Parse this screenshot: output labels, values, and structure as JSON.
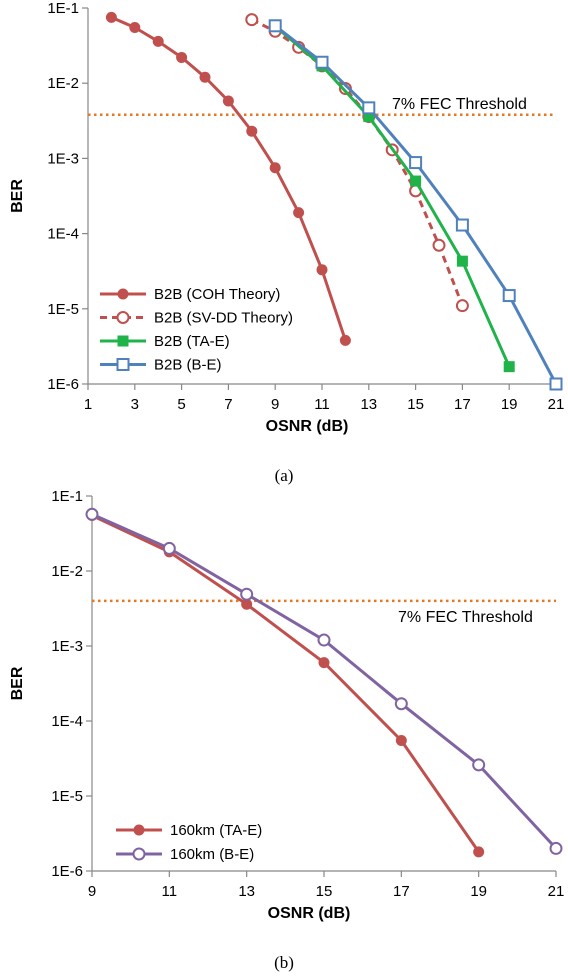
{
  "chart_data": [
    {
      "type": "line",
      "caption": "(a)",
      "xlabel": "OSNR (dB)",
      "ylabel": "BER",
      "xlim": [
        1,
        21
      ],
      "ylim": [
        1e-06,
        0.1
      ],
      "yscale": "log",
      "xticks": [
        "1",
        "3",
        "5",
        "7",
        "9",
        "11",
        "13",
        "15",
        "17",
        "19",
        "21"
      ],
      "yticks": [
        "1E-6",
        "1E-5",
        "1E-4",
        "1E-3",
        "1E-2",
        "1E-1"
      ],
      "grid": false,
      "legend_position": "bottom-left",
      "threshold": {
        "label": "7% FEC Threshold",
        "value": 0.0038,
        "color": "#e87722"
      },
      "series": [
        {
          "name": "B2B (COH Theory)",
          "color": "#c0504d",
          "marker": "filled-circle",
          "dash": false,
          "x": [
            2,
            3,
            4,
            5,
            6,
            7,
            8,
            9,
            10,
            11,
            12
          ],
          "y": [
            0.075,
            0.055,
            0.036,
            0.022,
            0.012,
            0.0058,
            0.0023,
            0.00075,
            0.00019,
            3.3e-05,
            3.8e-06
          ]
        },
        {
          "name": "B2B (SV-DD Theory)",
          "color": "#c0504d",
          "marker": "open-circle",
          "dash": true,
          "x": [
            8,
            9,
            10,
            11,
            12,
            13,
            14,
            15,
            16,
            17
          ],
          "y": [
            0.07,
            0.049,
            0.03,
            0.017,
            0.0085,
            0.0036,
            0.0013,
            0.00037,
            7e-05,
            1.1e-05
          ]
        },
        {
          "name": "B2B (TA-E)",
          "color": "#1fb34a",
          "marker": "filled-square",
          "dash": false,
          "x": [
            9,
            11,
            13,
            15,
            17,
            19
          ],
          "y": [
            0.057,
            0.017,
            0.0036,
            0.0005,
            4.3e-05,
            1.7e-06
          ]
        },
        {
          "name": "B2B (B-E)",
          "color": "#4f81bd",
          "marker": "open-square",
          "dash": false,
          "x": [
            9,
            11,
            13,
            15,
            17,
            19,
            21
          ],
          "y": [
            0.058,
            0.019,
            0.0047,
            0.00088,
            0.00013,
            1.5e-05,
            1e-06
          ]
        }
      ]
    },
    {
      "type": "line",
      "caption": "(b)",
      "xlabel": "OSNR (dB)",
      "ylabel": "BER",
      "xlim": [
        9,
        21
      ],
      "ylim": [
        1e-06,
        0.1
      ],
      "yscale": "log",
      "xticks": [
        "9",
        "11",
        "13",
        "15",
        "17",
        "19",
        "21"
      ],
      "yticks": [
        "1E-6",
        "1E-5",
        "1E-4",
        "1E-3",
        "1E-2",
        "1E-1"
      ],
      "grid": false,
      "legend_position": "bottom-left",
      "threshold": {
        "label": "7% FEC Threshold",
        "value": 0.004,
        "color": "#e87722"
      },
      "series": [
        {
          "name": "160km (TA-E)",
          "color": "#c0504d",
          "marker": "filled-circle",
          "dash": false,
          "x": [
            9,
            11,
            13,
            15,
            17,
            19
          ],
          "y": [
            0.055,
            0.018,
            0.0036,
            0.0006,
            5.5e-05,
            1.8e-06
          ]
        },
        {
          "name": "160km (B-E)",
          "color": "#8064a2",
          "marker": "open-circle",
          "dash": false,
          "x": [
            9,
            11,
            13,
            15,
            17,
            19,
            21
          ],
          "y": [
            0.057,
            0.02,
            0.0049,
            0.0012,
            0.00017,
            2.6e-05,
            2e-06
          ]
        }
      ]
    }
  ]
}
